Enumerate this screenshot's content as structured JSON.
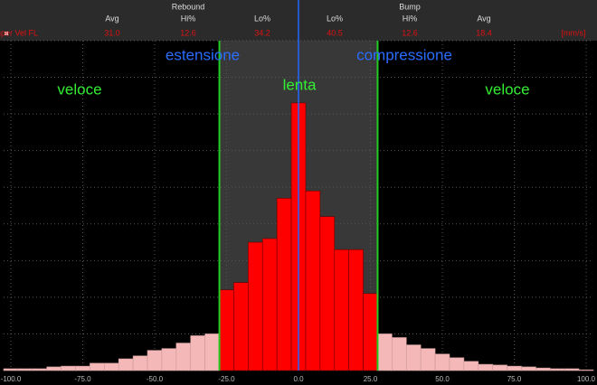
{
  "chart_data": {
    "type": "histogram",
    "stats_table": {
      "groups": [
        "Rebound",
        "Bump"
      ],
      "columns": [
        "Avg",
        "Hi%",
        "Lo%",
        "Lo%",
        "Hi%",
        "Avg"
      ],
      "channel": "Damper Vel FL",
      "values": [
        "31.0",
        "12.6",
        "34.2",
        "40.5",
        "12.6",
        "18.4"
      ],
      "unit": "[mm/s]"
    },
    "annotations": [
      "estensione",
      "compressione",
      "veloce",
      "lenta",
      "veloce"
    ],
    "bins": [
      -102.5,
      -97.5,
      -92.5,
      -87.5,
      -82.5,
      -77.5,
      -72.5,
      -67.5,
      -62.5,
      -57.5,
      -52.5,
      -47.5,
      -42.5,
      -37.5,
      -32.5,
      -27.5,
      -22.5,
      -17.5,
      -12.5,
      -7.5,
      -2.5,
      2.5,
      7.5,
      12.5,
      17.5,
      22.5,
      27.5,
      32.5,
      37.5,
      42.5,
      47.5,
      52.5,
      57.5,
      62.5,
      67.5,
      72.5,
      77.5,
      82.5,
      87.5,
      92.5,
      97.5,
      102.5
    ],
    "values": [
      0.05,
      0.05,
      0.05,
      0.1,
      0.12,
      0.12,
      0.2,
      0.2,
      0.32,
      0.4,
      0.55,
      0.6,
      0.75,
      0.95,
      1.0,
      2.2,
      2.4,
      3.5,
      3.6,
      4.7,
      7.3,
      4.9,
      4.2,
      3.3,
      3.3,
      2.1,
      1.0,
      0.9,
      0.7,
      0.6,
      0.45,
      0.35,
      0.25,
      0.17,
      0.15,
      0.12,
      0.1,
      0.07,
      0.05,
      0.05,
      0.02
    ],
    "color": "#ff0000",
    "outer_color": "#f4b8b8",
    "threshold_lines": [
      -27.5,
      27.5
    ],
    "threshold_color": "#22cc22",
    "zero_line_color": "#2266ff",
    "xlim": [
      -102.5,
      102.5
    ],
    "xticks": [
      {
        "value": -100,
        "label": "-100.0"
      },
      {
        "value": -75,
        "label": "-75.0"
      },
      {
        "value": -50,
        "label": "-50.0"
      },
      {
        "value": -25,
        "label": "-25.0"
      },
      {
        "value": 0,
        "label": "0.0"
      },
      {
        "value": 25,
        "label": "25.0"
      },
      {
        "value": 50,
        "label": "50.0"
      },
      {
        "value": 75,
        "label": "75.0"
      },
      {
        "value": 100,
        "label": "100.0"
      }
    ],
    "ylim": [
      0,
      9
    ],
    "yticks": [
      0,
      1,
      2,
      3,
      4,
      5,
      6,
      7,
      8,
      9
    ],
    "grid": true
  }
}
